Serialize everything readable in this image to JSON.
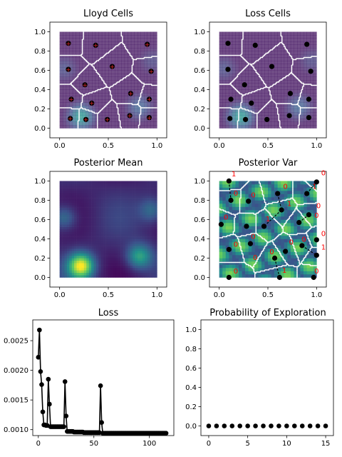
{
  "colors": {
    "vor_edge": "#ffffff",
    "marker": "#000000",
    "red_cross": "#d62728",
    "annotation": "#ff0000",
    "colormap": "viridis"
  },
  "chart_data": [
    {
      "panel": "lloyd",
      "type": "scatter",
      "title": "Lloyd Cells",
      "xlim": [
        -0.1,
        1.1
      ],
      "ylim": [
        -0.1,
        1.1
      ],
      "xticks": [
        "0.0",
        "0.5",
        "1.0"
      ],
      "yticks": [
        "0.0",
        "0.2",
        "0.4",
        "0.6",
        "0.8",
        "1.0"
      ],
      "points": [
        [
          0.09,
          0.88
        ],
        [
          0.37,
          0.86
        ],
        [
          0.9,
          0.87
        ],
        [
          0.09,
          0.61
        ],
        [
          0.54,
          0.64
        ],
        [
          0.94,
          0.59
        ],
        [
          0.26,
          0.45
        ],
        [
          0.12,
          0.3
        ],
        [
          0.33,
          0.26
        ],
        [
          0.73,
          0.36
        ],
        [
          0.92,
          0.3
        ],
        [
          0.11,
          0.1
        ],
        [
          0.27,
          0.09
        ],
        [
          0.49,
          0.09
        ],
        [
          0.72,
          0.13
        ],
        [
          0.92,
          0.11
        ]
      ],
      "markers": "black dots with red crosses",
      "background": "loss surface (viridis) with Voronoi cells"
    },
    {
      "panel": "loss",
      "type": "scatter",
      "title": "Loss Cells",
      "xlim": [
        -0.1,
        1.1
      ],
      "ylim": [
        -0.1,
        1.1
      ],
      "xticks": [
        "0.0",
        "0.5",
        "1.0"
      ],
      "yticks": [
        "0.0",
        "0.2",
        "0.4",
        "0.6",
        "0.8",
        "1.0"
      ],
      "points": [
        [
          0.09,
          0.88
        ],
        [
          0.37,
          0.86
        ],
        [
          0.9,
          0.87
        ],
        [
          0.09,
          0.61
        ],
        [
          0.54,
          0.64
        ],
        [
          0.94,
          0.59
        ],
        [
          0.26,
          0.45
        ],
        [
          0.12,
          0.3
        ],
        [
          0.33,
          0.26
        ],
        [
          0.73,
          0.36
        ],
        [
          0.92,
          0.3
        ],
        [
          0.11,
          0.1
        ],
        [
          0.27,
          0.09
        ],
        [
          0.49,
          0.09
        ],
        [
          0.72,
          0.13
        ],
        [
          0.92,
          0.11
        ]
      ]
    },
    {
      "panel": "mean",
      "type": "heatmap",
      "title": "Posterior Mean",
      "xlim": [
        -0.1,
        1.1
      ],
      "ylim": [
        -0.1,
        1.1
      ],
      "xticks": [
        "0.0",
        "0.5",
        "1.0"
      ],
      "yticks": [
        "0.0",
        "0.2",
        "0.4",
        "0.6",
        "0.8",
        "1.0"
      ],
      "hotspots": [
        {
          "x": 0.22,
          "y": 0.12,
          "level": 1.0
        },
        {
          "x": 0.82,
          "y": 0.22,
          "level": 0.55
        },
        {
          "x": 0.05,
          "y": 0.62,
          "level": 0.35
        },
        {
          "x": 0.95,
          "y": 0.7,
          "level": 0.3
        }
      ]
    },
    {
      "panel": "var",
      "type": "scatter",
      "title": "Posterior Var",
      "xlim": [
        -0.1,
        1.1
      ],
      "ylim": [
        -0.1,
        1.1
      ],
      "xticks": [
        "0.0",
        "0.5",
        "1.0"
      ],
      "yticks": [
        "0.0",
        "0.2",
        "0.4",
        "0.6",
        "0.8",
        "1.0"
      ],
      "points": [
        [
          0.1,
          1.0
        ],
        [
          0.12,
          0.8
        ],
        [
          0.3,
          0.79
        ],
        [
          0.6,
          0.87
        ],
        [
          0.9,
          0.87
        ],
        [
          1.0,
          0.99
        ],
        [
          0.02,
          0.55
        ],
        [
          0.28,
          0.53
        ],
        [
          0.46,
          0.53
        ],
        [
          0.64,
          0.7
        ],
        [
          0.82,
          0.57
        ],
        [
          0.92,
          0.65
        ],
        [
          1.0,
          0.39
        ],
        [
          0.32,
          0.35
        ],
        [
          0.1,
          0.29
        ],
        [
          0.57,
          0.2
        ],
        [
          0.68,
          0.27
        ],
        [
          0.85,
          0.33
        ],
        [
          1.0,
          0.23
        ],
        [
          0.1,
          0.0
        ],
        [
          0.62,
          0.0
        ],
        [
          0.97,
          0.0
        ]
      ],
      "dashed_moves": [
        [
          [
            0.1,
            1.0
          ],
          [
            0.12,
            0.8
          ]
        ],
        [
          [
            0.6,
            0.87
          ],
          [
            0.64,
            0.7
          ]
        ],
        [
          [
            0.64,
            0.7
          ],
          [
            0.46,
            0.53
          ]
        ],
        [
          [
            0.9,
            0.87
          ],
          [
            1.0,
            0.99
          ]
        ],
        [
          [
            0.82,
            0.57
          ],
          [
            0.92,
            0.65
          ]
        ],
        [
          [
            0.85,
            0.33
          ],
          [
            1.0,
            0.23
          ]
        ],
        [
          [
            0.57,
            0.2
          ],
          [
            0.62,
            0.0
          ]
        ]
      ],
      "annotations": [
        {
          "text": "1",
          "x": 0.15,
          "y": 1.05
        },
        {
          "text": "0",
          "x": 0.17,
          "y": 0.85
        },
        {
          "text": "0",
          "x": 0.35,
          "y": 0.83
        },
        {
          "text": "0",
          "x": 0.68,
          "y": 0.92
        },
        {
          "text": "1",
          "x": 0.72,
          "y": 0.74
        },
        {
          "text": "1",
          "x": 0.98,
          "y": 0.92
        },
        {
          "text": "0",
          "x": 1.07,
          "y": 1.06
        },
        {
          "text": "0",
          "x": 0.07,
          "y": 0.6
        },
        {
          "text": "1",
          "x": 0.5,
          "y": 0.58
        },
        {
          "text": "0",
          "x": 1.02,
          "y": 0.72
        },
        {
          "text": "0",
          "x": 1.0,
          "y": 0.62
        },
        {
          "text": "0",
          "x": 0.35,
          "y": 0.4
        },
        {
          "text": "0",
          "x": 0.17,
          "y": 0.32
        },
        {
          "text": "0",
          "x": 0.74,
          "y": 0.34
        },
        {
          "text": "0",
          "x": 0.87,
          "y": 0.37
        },
        {
          "text": "0",
          "x": 1.07,
          "y": 0.43
        },
        {
          "text": "1",
          "x": 1.07,
          "y": 0.29
        },
        {
          "text": "0",
          "x": 0.37,
          "y": 0.18
        },
        {
          "text": "0",
          "x": 0.54,
          "y": 0.24
        },
        {
          "text": "1",
          "x": 0.67,
          "y": 0.05
        },
        {
          "text": "0",
          "x": 0.17,
          "y": 0.04
        },
        {
          "text": "0",
          "x": 1.0,
          "y": 0.04
        }
      ]
    },
    {
      "panel": "lossplot",
      "type": "line",
      "title": "Loss",
      "xlim": [
        -5,
        122
      ],
      "ylim": [
        0.0009,
        0.00285
      ],
      "xticks": [
        "0",
        "50",
        "100"
      ],
      "yticks": [
        "0.0010",
        "0.0015",
        "0.0020",
        "0.0025"
      ],
      "x": [
        0,
        1,
        2,
        3,
        4,
        5,
        6,
        7,
        8,
        9,
        10,
        11,
        12,
        13,
        14,
        15,
        16,
        17,
        18,
        19,
        20,
        21,
        22,
        23,
        24,
        25,
        26,
        27,
        28,
        29,
        30,
        31,
        32,
        33,
        34,
        35,
        36,
        37,
        38,
        39,
        40,
        41,
        42,
        43,
        44,
        45,
        46,
        47,
        48,
        49,
        50,
        51,
        52,
        53,
        54,
        55,
        56,
        57,
        58,
        59,
        60,
        61,
        62,
        63,
        64,
        65,
        66,
        67,
        68,
        69,
        70,
        71,
        72,
        73,
        74,
        75,
        76,
        77,
        78,
        79,
        80,
        81,
        82,
        83,
        84,
        85,
        86,
        87,
        88,
        89,
        90,
        91,
        92,
        93,
        94,
        95,
        96,
        97,
        98,
        99,
        100,
        101,
        102,
        103,
        104,
        105,
        106,
        107,
        108,
        109,
        110,
        111,
        112,
        113,
        114,
        115
      ],
      "y": [
        0.00222,
        0.00268,
        0.00198,
        0.00176,
        0.0013,
        0.00108,
        0.00108,
        0.00107,
        0.00107,
        0.00185,
        0.00143,
        0.00105,
        0.00105,
        0.00105,
        0.00105,
        0.00105,
        0.00105,
        0.00105,
        0.00105,
        0.00105,
        0.00105,
        0.00105,
        0.00105,
        0.00105,
        0.00181,
        0.00123,
        0.00097,
        0.00097,
        0.00097,
        0.00097,
        0.00097,
        0.00097,
        0.00096,
        0.00096,
        0.00096,
        0.00096,
        0.00096,
        0.00096,
        0.00096,
        0.00096,
        0.00096,
        0.00095,
        0.00095,
        0.00095,
        0.00095,
        0.00095,
        0.00095,
        0.00095,
        0.00095,
        0.00095,
        0.00095,
        0.00095,
        0.00095,
        0.00095,
        0.00095,
        0.00095,
        0.00174,
        0.00112,
        0.00094,
        0.00094,
        0.00094,
        0.00094,
        0.00094,
        0.00094,
        0.00094,
        0.00094,
        0.00094,
        0.00094,
        0.00094,
        0.00094,
        0.00094,
        0.00094,
        0.00094,
        0.00094,
        0.00094,
        0.00094,
        0.00094,
        0.00094,
        0.00094,
        0.00094,
        0.00094,
        0.00094,
        0.00094,
        0.00094,
        0.00094,
        0.00094,
        0.00094,
        0.00094,
        0.00094,
        0.00094,
        0.00094,
        0.00094,
        0.00094,
        0.00094,
        0.00094,
        0.00094,
        0.00094,
        0.00094,
        0.00094,
        0.00094,
        0.00094,
        0.00094,
        0.00094,
        0.00094,
        0.00094,
        0.00094,
        0.00094,
        0.00094,
        0.00094,
        0.00094,
        0.00094,
        0.00094,
        0.00094,
        0.00094,
        0.00094,
        0.00094
      ]
    },
    {
      "panel": "prob",
      "type": "scatter",
      "title": "Probability of Exploration",
      "xlim": [
        -1,
        16
      ],
      "ylim": [
        -0.1,
        1.1
      ],
      "xticks": [
        "0",
        "5",
        "10",
        "15"
      ],
      "yticks": [
        "0.0",
        "0.2",
        "0.4",
        "0.6",
        "0.8",
        "1.0"
      ],
      "x": [
        0,
        1,
        2,
        3,
        4,
        5,
        6,
        7,
        8,
        9,
        10,
        11,
        12,
        13,
        14,
        15
      ],
      "y": [
        0,
        0,
        0,
        0,
        0,
        0,
        0,
        0,
        0,
        0,
        0,
        0,
        0,
        0,
        0,
        0
      ]
    }
  ]
}
